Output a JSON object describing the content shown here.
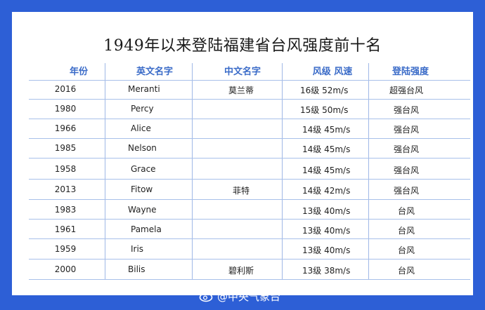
{
  "title": "1949年以来登陆福建省台风强度前十名",
  "headers": {
    "year": "年份",
    "en_name": "英文名字",
    "cn_name": "中文名字",
    "wind": "风级  风速",
    "landfall": "登陆强度"
  },
  "rows": [
    {
      "year": "2016",
      "en": "Meranti",
      "cn": "莫兰蒂",
      "wind": "16级  52m/s",
      "level": "超强台风"
    },
    {
      "year": "1980",
      "en": "Percy",
      "cn": "",
      "wind": "15级  50m/s",
      "level": "强台风"
    },
    {
      "year": "1966",
      "en": "Alice",
      "cn": "",
      "wind": "14级  45m/s",
      "level": "强台风"
    },
    {
      "year": "1985",
      "en": "Nelson",
      "cn": "",
      "wind": "14级  45m/s",
      "level": "强台风"
    },
    {
      "year": "1958",
      "en": "Grace",
      "cn": "",
      "wind": "14级  45m/s",
      "level": "强台风"
    },
    {
      "year": "2013",
      "en": "Fitow",
      "cn": "菲特",
      "wind": "14级  42m/s",
      "level": "强台风"
    },
    {
      "year": "1983",
      "en": "Wayne",
      "cn": "",
      "wind": "13级  40m/s",
      "level": "台风"
    },
    {
      "year": "1961",
      "en": "Pamela",
      "cn": "",
      "wind": "13级  40m/s",
      "level": "台风"
    },
    {
      "year": "1959",
      "en": "Iris",
      "cn": "",
      "wind": "13级  40m/s",
      "level": "台风"
    },
    {
      "year": "2000",
      "en": "Bilis",
      "cn": "碧利斯",
      "wind": "13级  38m/s",
      "level": "台风"
    }
  ],
  "watermark": "@中央气象台",
  "colors": {
    "background": "#2d5fd6",
    "header_text": "#3a6bc8",
    "rule": "#a8c0ea"
  }
}
